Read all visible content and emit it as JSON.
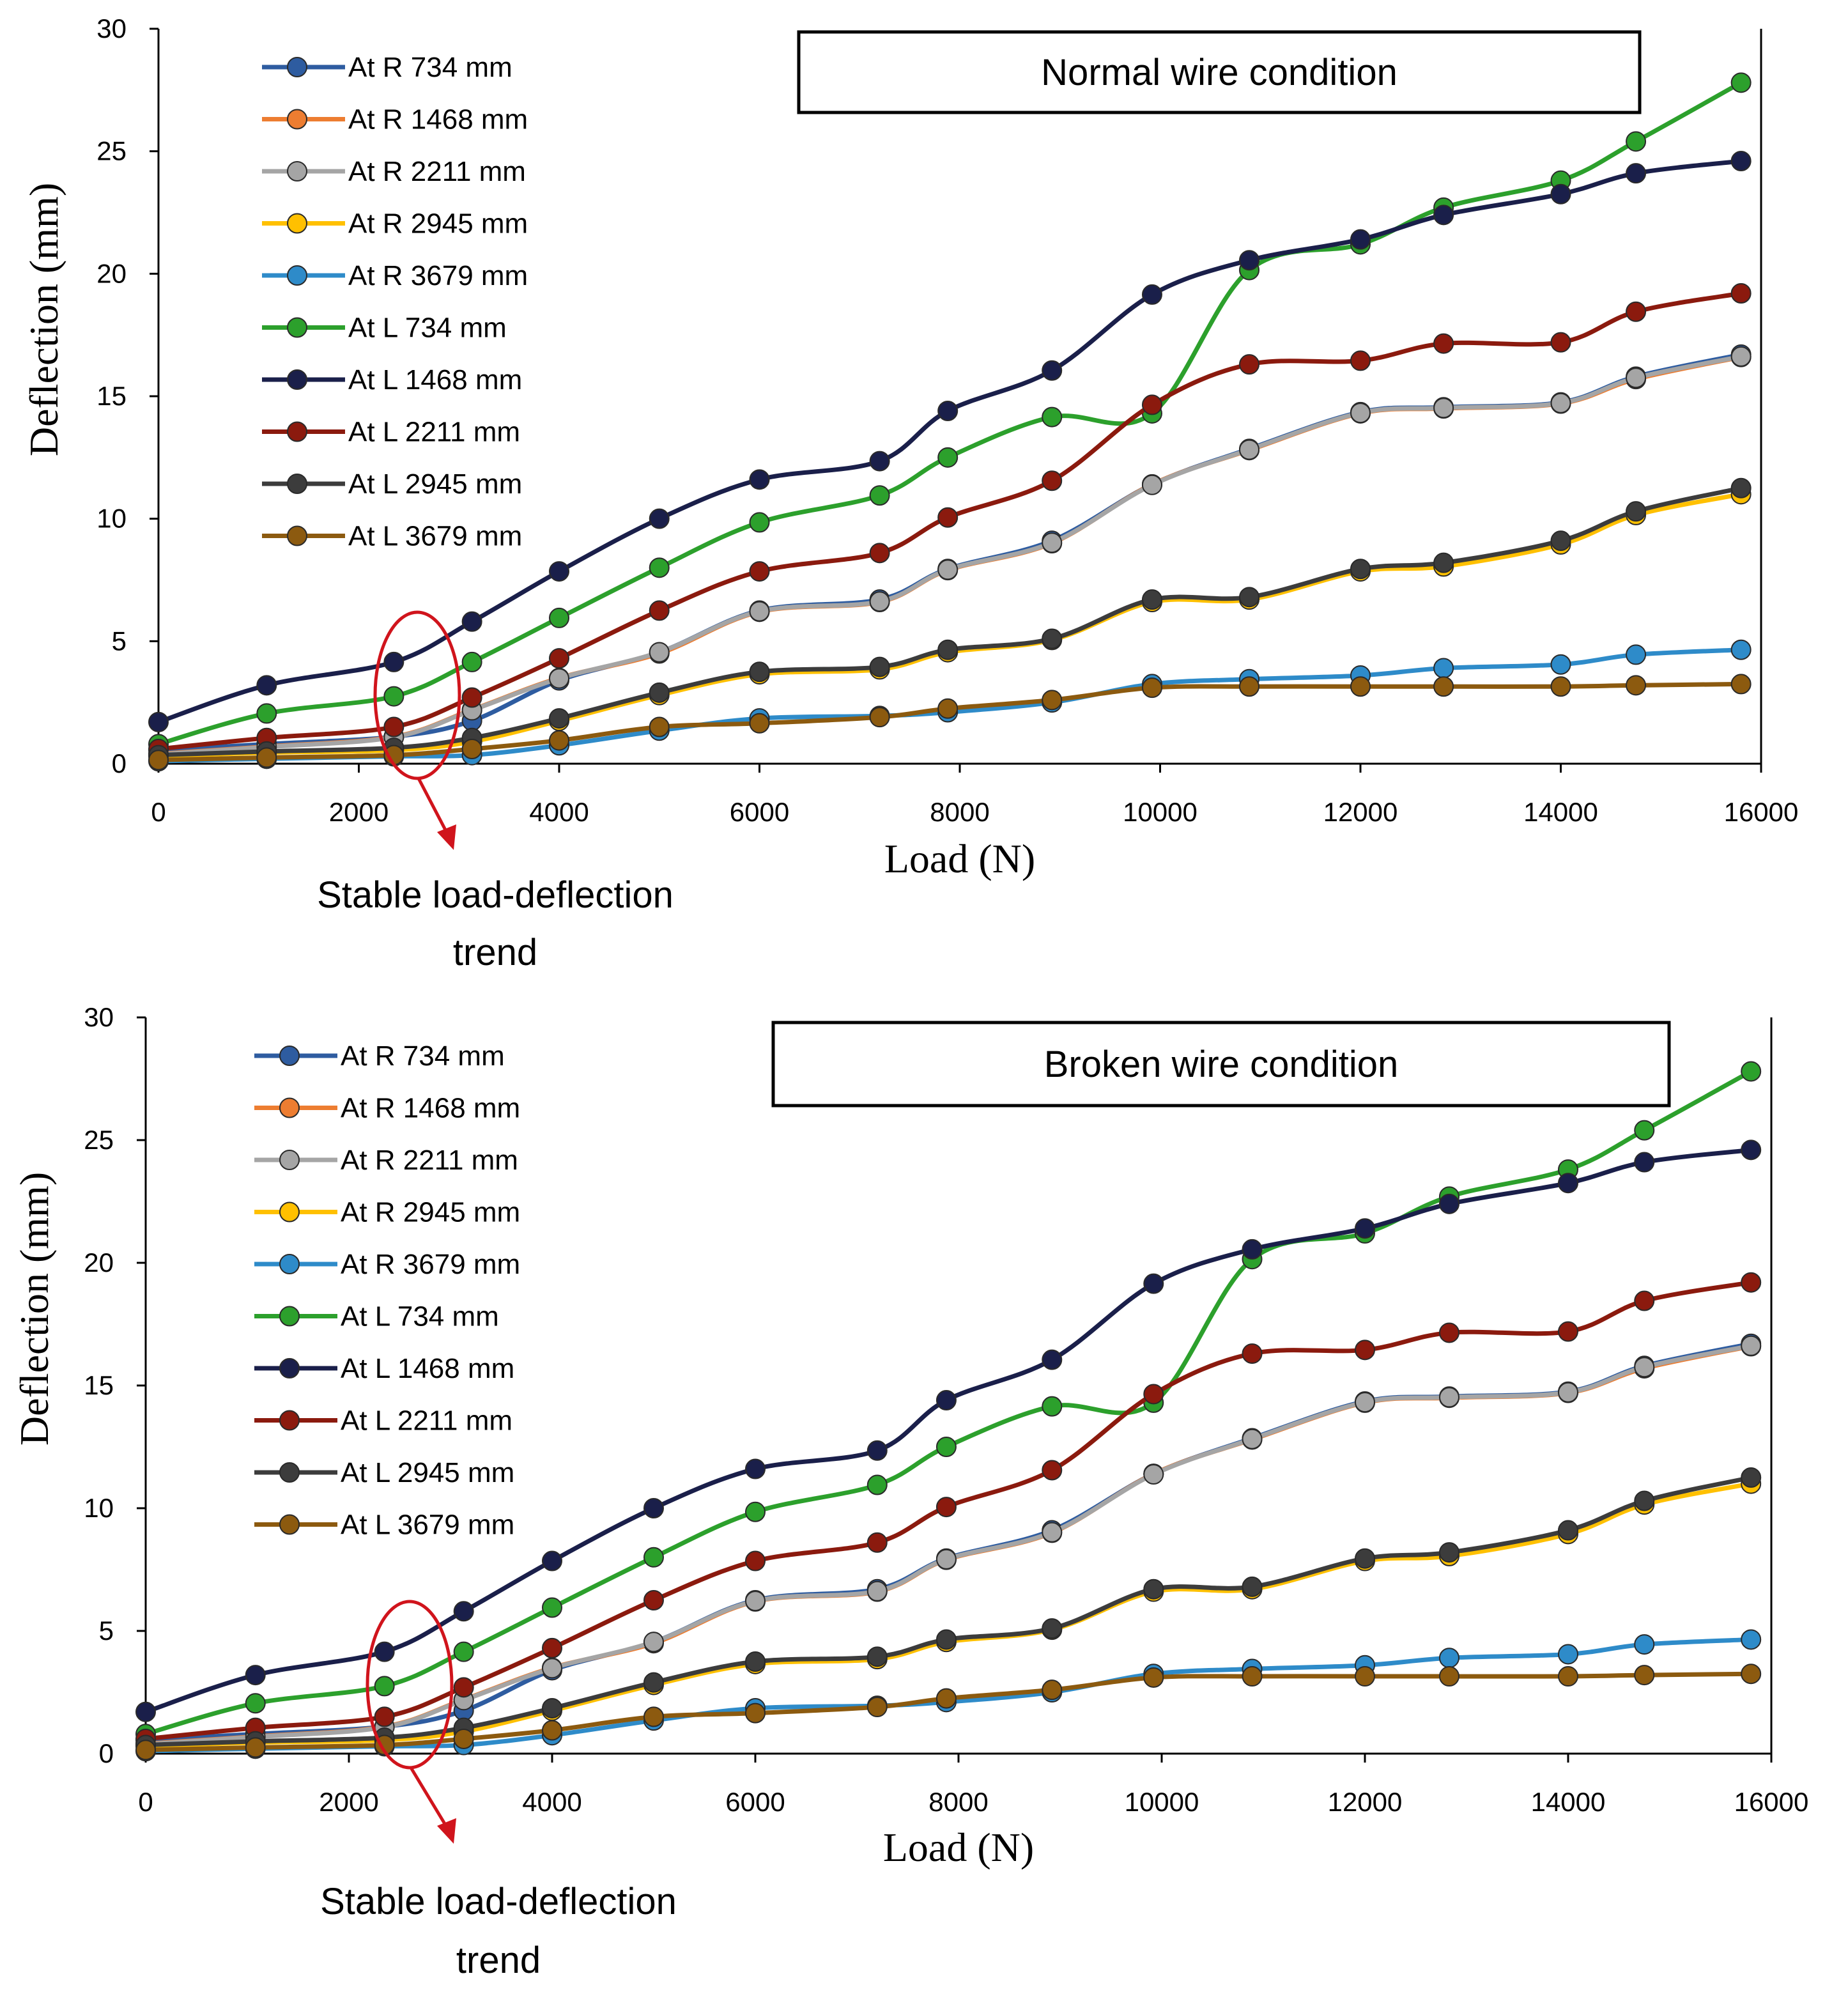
{
  "chart_data": [
    {
      "type": "line",
      "title": "Normal wire condition",
      "xlabel": "Load (N)",
      "ylabel": "Deflection (mm)",
      "xlim": [
        0,
        16000
      ],
      "ylim": [
        0,
        30
      ],
      "xticks": [
        0,
        2000,
        4000,
        6000,
        8000,
        10000,
        12000,
        14000,
        16000
      ],
      "yticks": [
        0,
        5,
        10,
        15,
        20,
        25,
        30
      ],
      "x": [
        0,
        1080,
        2350,
        3130,
        4000,
        5000,
        6000,
        7200,
        7880,
        8920,
        9920,
        10890,
        12000,
        12830,
        14000,
        14750,
        15800
      ],
      "series": [
        {
          "name": "At R 734 mm",
          "color": "#2e5ca0",
          "values": [
            0.55,
            0.8,
            1.1,
            1.75,
            3.4,
            4.55,
            6.25,
            6.7,
            7.95,
            9.1,
            11.4,
            12.85,
            14.35,
            14.55,
            14.75,
            15.8,
            16.7
          ]
        },
        {
          "name": "At R 1468 mm",
          "color": "#ed7d31",
          "values": [
            0.4,
            0.7,
            1.1,
            2.2,
            3.5,
            4.5,
            6.2,
            6.6,
            7.9,
            9.0,
            11.4,
            12.8,
            14.3,
            14.5,
            14.7,
            15.7,
            16.6
          ]
        },
        {
          "name": "At R 2211 mm",
          "color": "#a5a5a5",
          "values": [
            0.38,
            0.68,
            1.08,
            2.18,
            3.48,
            4.55,
            6.22,
            6.62,
            7.92,
            9.02,
            11.38,
            12.82,
            14.32,
            14.52,
            14.72,
            15.75,
            16.62
          ]
        },
        {
          "name": "At R 2945 mm",
          "color": "#ffc000",
          "values": [
            0.3,
            0.45,
            0.55,
            0.9,
            1.75,
            2.8,
            3.65,
            3.85,
            4.55,
            5.05,
            6.6,
            6.7,
            7.85,
            8.05,
            8.95,
            10.15,
            11.0
          ]
        },
        {
          "name": "At R 3679 mm",
          "color": "#2e8bc9",
          "values": [
            0.1,
            0.2,
            0.3,
            0.35,
            0.75,
            1.35,
            1.85,
            1.95,
            2.1,
            2.5,
            3.25,
            3.45,
            3.6,
            3.9,
            4.05,
            4.45,
            4.65
          ]
        },
        {
          "name": "At L 734 mm",
          "color": "#2ca02c",
          "values": [
            0.8,
            2.05,
            2.75,
            4.15,
            5.95,
            8.0,
            9.85,
            10.95,
            12.5,
            14.15,
            14.3,
            20.15,
            21.2,
            22.7,
            23.8,
            25.4,
            27.8
          ]
        },
        {
          "name": "At L 1468 mm",
          "color": "#1a1f4a",
          "values": [
            1.7,
            3.2,
            4.15,
            5.8,
            7.85,
            10.0,
            11.6,
            12.35,
            14.4,
            16.05,
            19.15,
            20.55,
            21.4,
            22.4,
            23.25,
            24.1,
            24.6
          ]
        },
        {
          "name": "At L 2211 mm",
          "color": "#8b1a0e",
          "values": [
            0.6,
            1.05,
            1.5,
            2.7,
            4.3,
            6.25,
            7.85,
            8.6,
            10.05,
            11.55,
            14.65,
            16.3,
            16.45,
            17.15,
            17.2,
            18.45,
            19.2
          ]
        },
        {
          "name": "At L 2945 mm",
          "color": "#3c3c3c",
          "values": [
            0.35,
            0.5,
            0.65,
            1.05,
            1.85,
            2.9,
            3.75,
            3.95,
            4.65,
            5.1,
            6.7,
            6.8,
            7.95,
            8.2,
            9.1,
            10.3,
            11.25
          ]
        },
        {
          "name": "At L 3679 mm",
          "color": "#8c5a0f",
          "values": [
            0.15,
            0.25,
            0.35,
            0.6,
            0.95,
            1.5,
            1.65,
            1.9,
            2.25,
            2.6,
            3.1,
            3.15,
            3.15,
            3.15,
            3.15,
            3.2,
            3.25
          ]
        }
      ],
      "annotation": {
        "line1": "Stable load-deflection",
        "line2": "trend",
        "x": 2350
      }
    },
    {
      "type": "line",
      "title": "Broken wire condition",
      "xlabel": "Load (N)",
      "ylabel": "Deflection (mm)",
      "xlim": [
        0,
        16000
      ],
      "ylim": [
        0,
        30
      ],
      "xticks": [
        0,
        2000,
        4000,
        6000,
        8000,
        10000,
        12000,
        14000,
        16000
      ],
      "yticks": [
        0,
        5,
        10,
        15,
        20,
        25,
        30
      ],
      "x": [
        0,
        1080,
        2350,
        3130,
        4000,
        5000,
        6000,
        7200,
        7880,
        8920,
        9920,
        10890,
        12000,
        12830,
        14000,
        14750,
        15800
      ],
      "series": [
        {
          "name": "At R 734 mm",
          "color": "#2e5ca0",
          "values": [
            0.55,
            0.8,
            1.1,
            1.75,
            3.4,
            4.55,
            6.25,
            6.7,
            7.95,
            9.1,
            11.4,
            12.85,
            14.35,
            14.55,
            14.75,
            15.8,
            16.7
          ]
        },
        {
          "name": "At R 1468 mm",
          "color": "#ed7d31",
          "values": [
            0.4,
            0.7,
            1.1,
            2.2,
            3.5,
            4.5,
            6.2,
            6.6,
            7.9,
            9.0,
            11.4,
            12.8,
            14.3,
            14.5,
            14.7,
            15.7,
            16.6
          ]
        },
        {
          "name": "At R 2211 mm",
          "color": "#a5a5a5",
          "values": [
            0.38,
            0.68,
            1.08,
            2.18,
            3.48,
            4.55,
            6.22,
            6.62,
            7.92,
            9.02,
            11.38,
            12.82,
            14.32,
            14.52,
            14.72,
            15.75,
            16.62
          ]
        },
        {
          "name": "At R 2945 mm",
          "color": "#ffc000",
          "values": [
            0.3,
            0.45,
            0.55,
            0.9,
            1.75,
            2.8,
            3.65,
            3.85,
            4.55,
            5.05,
            6.6,
            6.7,
            7.85,
            8.05,
            8.95,
            10.15,
            11.0
          ]
        },
        {
          "name": "At R 3679 mm",
          "color": "#2e8bc9",
          "values": [
            0.1,
            0.2,
            0.3,
            0.35,
            0.75,
            1.35,
            1.85,
            1.95,
            2.1,
            2.5,
            3.25,
            3.45,
            3.6,
            3.9,
            4.05,
            4.45,
            4.65
          ]
        },
        {
          "name": "At L 734 mm",
          "color": "#2ca02c",
          "values": [
            0.8,
            2.05,
            2.75,
            4.15,
            5.95,
            8.0,
            9.85,
            10.95,
            12.5,
            14.15,
            14.3,
            20.15,
            21.2,
            22.7,
            23.8,
            25.4,
            27.8
          ]
        },
        {
          "name": "At L 1468 mm",
          "color": "#1a1f4a",
          "values": [
            1.7,
            3.2,
            4.15,
            5.8,
            7.85,
            10.0,
            11.6,
            12.35,
            14.4,
            16.05,
            19.15,
            20.55,
            21.4,
            22.4,
            23.25,
            24.1,
            24.6
          ]
        },
        {
          "name": "At L 2211 mm",
          "color": "#8b1a0e",
          "values": [
            0.6,
            1.05,
            1.5,
            2.7,
            4.3,
            6.25,
            7.85,
            8.6,
            10.05,
            11.55,
            14.65,
            16.3,
            16.45,
            17.15,
            17.2,
            18.45,
            19.2
          ]
        },
        {
          "name": "At L 2945 mm",
          "color": "#3c3c3c",
          "values": [
            0.35,
            0.5,
            0.65,
            1.05,
            1.85,
            2.9,
            3.75,
            3.95,
            4.65,
            5.1,
            6.7,
            6.8,
            7.95,
            8.2,
            9.1,
            10.3,
            11.25
          ]
        },
        {
          "name": "At L 3679 mm",
          "color": "#8c5a0f",
          "values": [
            0.15,
            0.25,
            0.35,
            0.6,
            0.95,
            1.5,
            1.65,
            1.9,
            2.25,
            2.6,
            3.1,
            3.15,
            3.15,
            3.15,
            3.15,
            3.2,
            3.25
          ]
        }
      ],
      "annotation": {
        "line1": "Stable load-deflection",
        "line2": "trend",
        "x": 2350
      }
    }
  ]
}
